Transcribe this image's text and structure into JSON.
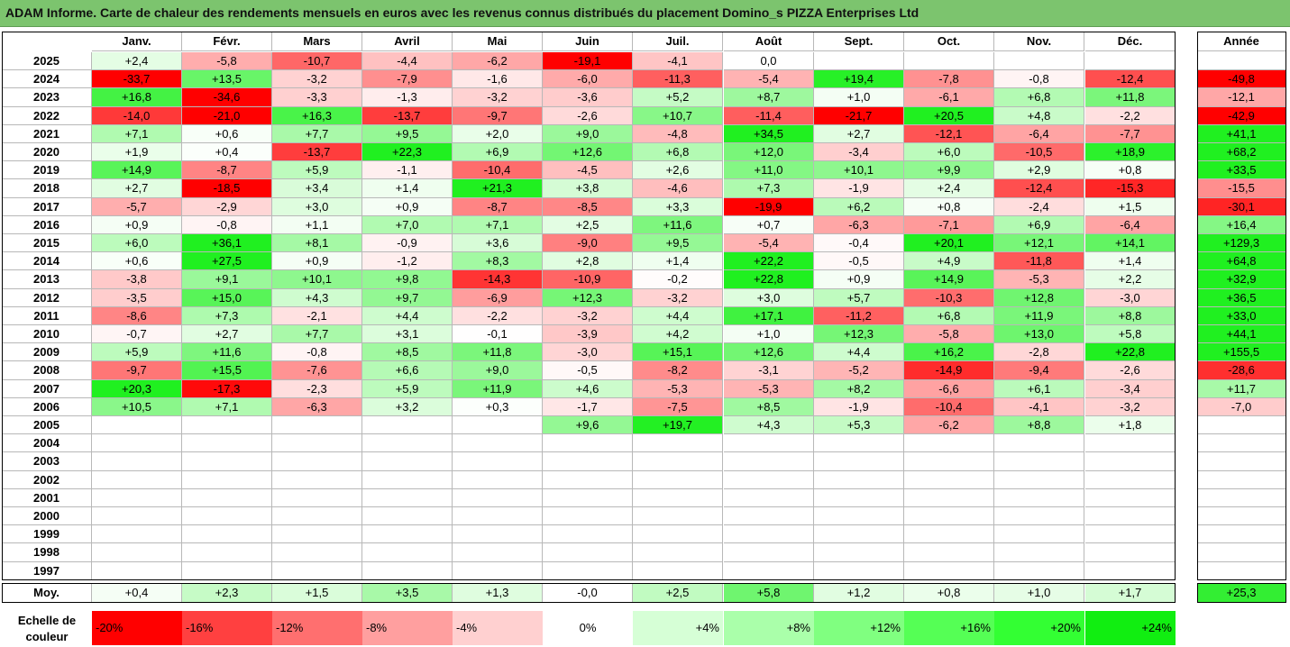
{
  "title": "ADAM Informe. Carte de chaleur des rendements mensuels en euros avec les revenus connus distribués du placement Domino_s PIZZA Enterprises Ltd",
  "chart_data": {
    "type": "heatmap",
    "title": "ADAM Informe. Carte de chaleur des rendements mensuels en euros avec les revenus connus distribués du placement Domino_s PIZZA Enterprises Ltd",
    "months": [
      "Janv.",
      "Févr.",
      "Mars",
      "Avril",
      "Mai",
      "Juin",
      "Juil.",
      "Août",
      "Sept.",
      "Oct.",
      "Nov.",
      "Déc."
    ],
    "annual_header": "Année",
    "rows": [
      {
        "year": "2025",
        "values": [
          "+2,4",
          "-5,8",
          "-10,7",
          "-4,4",
          "-6,2",
          "-19,1",
          "-4,1",
          "0,0",
          "",
          "",
          "",
          ""
        ],
        "annual": ""
      },
      {
        "year": "2024",
        "values": [
          "-33,7",
          "+13,5",
          "-3,2",
          "-7,9",
          "-1,6",
          "-6,0",
          "-11,3",
          "-5,4",
          "+19,4",
          "-7,8",
          "-0,8",
          "-12,4"
        ],
        "annual": "-49,8"
      },
      {
        "year": "2023",
        "values": [
          "+16,8",
          "-34,6",
          "-3,3",
          "-1,3",
          "-3,2",
          "-3,6",
          "+5,2",
          "+8,7",
          "+1,0",
          "-6,1",
          "+6,8",
          "+11,8"
        ],
        "annual": "-12,1"
      },
      {
        "year": "2022",
        "values": [
          "-14,0",
          "-21,0",
          "+16,3",
          "-13,7",
          "-9,7",
          "-2,6",
          "+10,7",
          "-11,4",
          "-21,7",
          "+20,5",
          "+4,8",
          "-2,2"
        ],
        "annual": "-42,9"
      },
      {
        "year": "2021",
        "values": [
          "+7,1",
          "+0,6",
          "+7,7",
          "+9,5",
          "+2,0",
          "+9,0",
          "-4,8",
          "+34,5",
          "+2,7",
          "-12,1",
          "-6,4",
          "-7,7"
        ],
        "annual": "+41,1"
      },
      {
        "year": "2020",
        "values": [
          "+1,9",
          "+0,4",
          "-13,7",
          "+22,3",
          "+6,9",
          "+12,6",
          "+6,8",
          "+12,0",
          "-3,4",
          "+6,0",
          "-10,5",
          "+18,9"
        ],
        "annual": "+68,2"
      },
      {
        "year": "2019",
        "values": [
          "+14,9",
          "-8,7",
          "+5,9",
          "-1,1",
          "-10,4",
          "-4,5",
          "+2,6",
          "+11,0",
          "+10,1",
          "+9,9",
          "+2,9",
          "+0,8"
        ],
        "annual": "+33,5"
      },
      {
        "year": "2018",
        "values": [
          "+2,7",
          "-18,5",
          "+3,4",
          "+1,4",
          "+21,3",
          "+3,8",
          "-4,6",
          "+7,3",
          "-1,9",
          "+2,4",
          "-12,4",
          "-15,3"
        ],
        "annual": "-15,5"
      },
      {
        "year": "2017",
        "values": [
          "-5,7",
          "-2,9",
          "+3,0",
          "+0,9",
          "-8,7",
          "-8,5",
          "+3,3",
          "-19,9",
          "+6,2",
          "+0,8",
          "-2,4",
          "+1,5"
        ],
        "annual": "-30,1"
      },
      {
        "year": "2016",
        "values": [
          "+0,9",
          "-0,8",
          "+1,1",
          "+7,0",
          "+7,1",
          "+2,5",
          "+11,6",
          "+0,7",
          "-6,3",
          "-7,1",
          "+6,9",
          "-6,4"
        ],
        "annual": "+16,4"
      },
      {
        "year": "2015",
        "values": [
          "+6,0",
          "+36,1",
          "+8,1",
          "-0,9",
          "+3,6",
          "-9,0",
          "+9,5",
          "-5,4",
          "-0,4",
          "+20,1",
          "+12,1",
          "+14,1"
        ],
        "annual": "+129,3"
      },
      {
        "year": "2014",
        "values": [
          "+0,6",
          "+27,5",
          "+0,9",
          "-1,2",
          "+8,3",
          "+2,8",
          "+1,4",
          "+22,2",
          "-0,5",
          "+4,9",
          "-11,8",
          "+1,4"
        ],
        "annual": "+64,8"
      },
      {
        "year": "2013",
        "values": [
          "-3,8",
          "+9,1",
          "+10,1",
          "+9,8",
          "-14,3",
          "-10,9",
          "-0,2",
          "+22,8",
          "+0,9",
          "+14,9",
          "-5,3",
          "+2,2"
        ],
        "annual": "+32,9"
      },
      {
        "year": "2012",
        "values": [
          "-3,5",
          "+15,0",
          "+4,3",
          "+9,7",
          "-6,9",
          "+12,3",
          "-3,2",
          "+3,0",
          "+5,7",
          "-10,3",
          "+12,8",
          "-3,0"
        ],
        "annual": "+36,5"
      },
      {
        "year": "2011",
        "values": [
          "-8,6",
          "+7,3",
          "-2,1",
          "+4,4",
          "-2,2",
          "-3,2",
          "+4,4",
          "+17,1",
          "-11,2",
          "+6,8",
          "+11,9",
          "+8,8"
        ],
        "annual": "+33,0"
      },
      {
        "year": "2010",
        "values": [
          "-0,7",
          "+2,7",
          "+7,7",
          "+3,1",
          "-0,1",
          "-3,9",
          "+4,2",
          "+1,0",
          "+12,3",
          "-5,8",
          "+13,0",
          "+5,8"
        ],
        "annual": "+44,1"
      },
      {
        "year": "2009",
        "values": [
          "+5,9",
          "+11,6",
          "-0,8",
          "+8,5",
          "+11,8",
          "-3,0",
          "+15,1",
          "+12,6",
          "+4,4",
          "+16,2",
          "-2,8",
          "+22,8"
        ],
        "annual": "+155,5"
      },
      {
        "year": "2008",
        "values": [
          "-9,7",
          "+15,5",
          "-7,6",
          "+6,6",
          "+9,0",
          "-0,5",
          "-8,2",
          "-3,1",
          "-5,2",
          "-14,9",
          "-9,4",
          "-2,6"
        ],
        "annual": "-28,6"
      },
      {
        "year": "2007",
        "values": [
          "+20,3",
          "-17,3",
          "-2,3",
          "+5,9",
          "+11,9",
          "+4,6",
          "-5,3",
          "-5,3",
          "+8,2",
          "-6,6",
          "+6,1",
          "-3,4"
        ],
        "annual": "+11,7"
      },
      {
        "year": "2006",
        "values": [
          "+10,5",
          "+7,1",
          "-6,3",
          "+3,2",
          "+0,3",
          "-1,7",
          "-7,5",
          "+8,5",
          "-1,9",
          "-10,4",
          "-4,1",
          "-3,2"
        ],
        "annual": "-7,0"
      },
      {
        "year": "2005",
        "values": [
          "",
          "",
          "",
          "",
          "",
          "+9,6",
          "+19,7",
          "+4,3",
          "+5,3",
          "-6,2",
          "+8,8",
          "+1,8"
        ],
        "annual": ""
      },
      {
        "year": "2004",
        "values": [
          "",
          "",
          "",
          "",
          "",
          "",
          "",
          "",
          "",
          "",
          "",
          ""
        ],
        "annual": ""
      },
      {
        "year": "2003",
        "values": [
          "",
          "",
          "",
          "",
          "",
          "",
          "",
          "",
          "",
          "",
          "",
          ""
        ],
        "annual": ""
      },
      {
        "year": "2002",
        "values": [
          "",
          "",
          "",
          "",
          "",
          "",
          "",
          "",
          "",
          "",
          "",
          ""
        ],
        "annual": ""
      },
      {
        "year": "2001",
        "values": [
          "",
          "",
          "",
          "",
          "",
          "",
          "",
          "",
          "",
          "",
          "",
          ""
        ],
        "annual": ""
      },
      {
        "year": "2000",
        "values": [
          "",
          "",
          "",
          "",
          "",
          "",
          "",
          "",
          "",
          "",
          "",
          ""
        ],
        "annual": ""
      },
      {
        "year": "1999",
        "values": [
          "",
          "",
          "",
          "",
          "",
          "",
          "",
          "",
          "",
          "",
          "",
          ""
        ],
        "annual": ""
      },
      {
        "year": "1998",
        "values": [
          "",
          "",
          "",
          "",
          "",
          "",
          "",
          "",
          "",
          "",
          "",
          ""
        ],
        "annual": ""
      },
      {
        "year": "1997",
        "values": [
          "",
          "",
          "",
          "",
          "",
          "",
          "",
          "",
          "",
          "",
          "",
          ""
        ],
        "annual": ""
      }
    ],
    "average": {
      "label": "Moy.",
      "values": [
        "+0,4",
        "+2,3",
        "+1,5",
        "+3,5",
        "+1,3",
        "-0,0",
        "+2,5",
        "+5,8",
        "+1,2",
        "+0,8",
        "+1,0",
        "+1,7"
      ],
      "annual": "+25,3"
    },
    "color_scale": {
      "label": "Echelle de couleur",
      "stops": [
        "-20%",
        "-16%",
        "-12%",
        "-8%",
        "-4%",
        "0%",
        "+4%",
        "+8%",
        "+12%",
        "+16%",
        "+20%",
        "+24%"
      ],
      "colors": [
        "#ff0000",
        "#ff4040",
        "#ff6f6f",
        "#ff9f9f",
        "#ffd0d0",
        "#ffffff",
        "#d6ffd6",
        "#aaffaa",
        "#80ff80",
        "#55ff55",
        "#33ff33",
        "#11ee11"
      ]
    }
  }
}
